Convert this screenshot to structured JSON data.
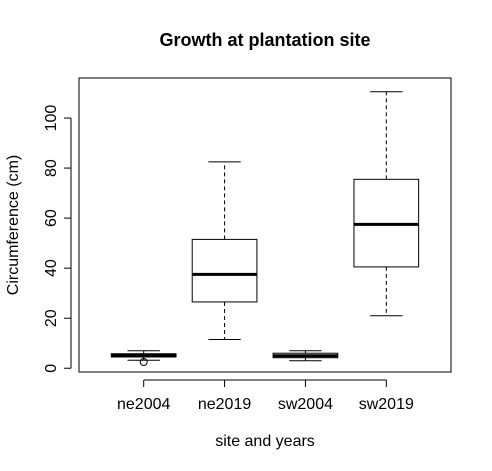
{
  "chart_data": {
    "type": "box",
    "title": "Growth at plantation site",
    "xlabel": "site and years",
    "ylabel": "Circumference (cm)",
    "ylim": [
      -1.5,
      116
    ],
    "yticks": [
      0,
      20,
      40,
      60,
      80,
      100
    ],
    "grid": false,
    "categories": [
      "ne2004",
      "ne2019",
      "sw2004",
      "sw2019"
    ],
    "boxes": [
      {
        "category": "ne2004",
        "whisker_low": 3.2,
        "q1": 4.5,
        "median": 5.2,
        "q3": 5.8,
        "whisker_high": 7.0,
        "outliers": [
          2.5
        ]
      },
      {
        "category": "ne2019",
        "whisker_low": 11.5,
        "q1": 26.5,
        "median": 37.5,
        "q3": 51.5,
        "whisker_high": 82.5,
        "outliers": []
      },
      {
        "category": "sw2004",
        "whisker_low": 3.0,
        "q1": 4.2,
        "median": 5.0,
        "q3": 6.0,
        "whisker_high": 7.0,
        "outliers": []
      },
      {
        "category": "sw2019",
        "whisker_low": 21.0,
        "q1": 40.5,
        "median": 57.5,
        "q3": 75.5,
        "whisker_high": 110.5,
        "outliers": []
      }
    ]
  }
}
